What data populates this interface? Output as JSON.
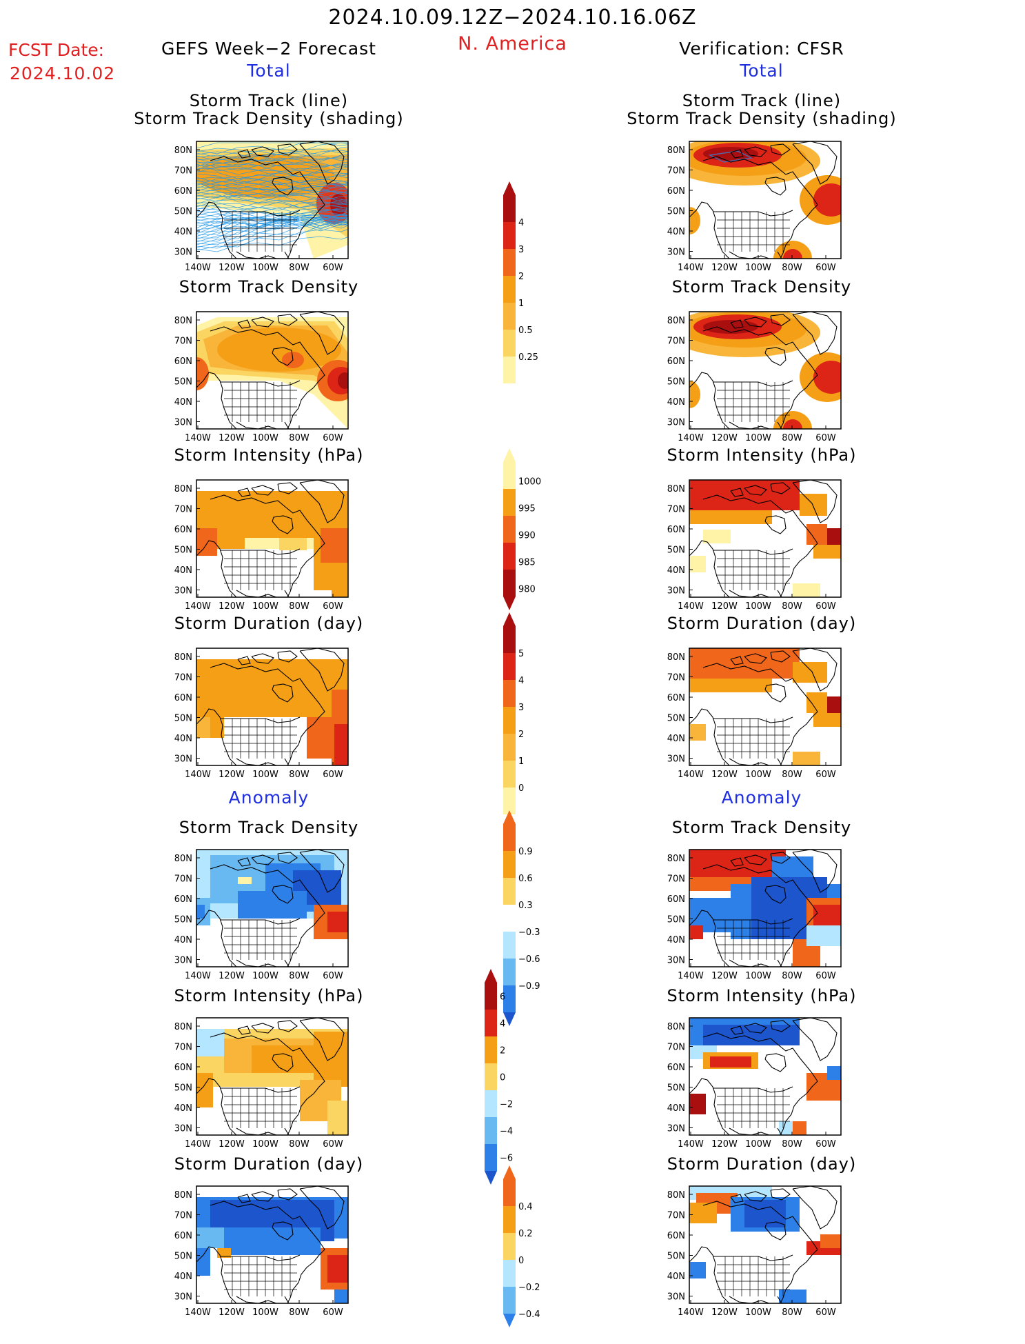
{
  "header": {
    "date_range": "2024.10.09.12Z−2024.10.16.06Z",
    "region": "N. America",
    "fcst_label": "FCST Date:",
    "fcst_date": "2024.10.02",
    "left_title": "GEFS Week−2 Forecast",
    "right_title": "Verification: CFSR",
    "total_label": "Total",
    "anomaly_label": "Anomaly"
  },
  "panels": {
    "storm_track": [
      "Storm Track (line)",
      "Storm Track Density (shading)"
    ],
    "track_density": "Storm Track Density",
    "intensity": "Storm Intensity (hPa)",
    "duration": "Storm Duration (day)"
  },
  "axes": {
    "lat_labels": [
      "80N",
      "70N",
      "60N",
      "50N",
      "40N",
      "30N"
    ],
    "lon_labels": [
      "140W",
      "120W",
      "100W",
      "80W",
      "60W"
    ]
  },
  "colorbars": {
    "total_density": [
      "4",
      "3",
      "2",
      "1",
      "0.5",
      "0.25"
    ],
    "total_intensity": [
      "1000",
      "995",
      "990",
      "985",
      "980"
    ],
    "total_duration": [
      "5",
      "4",
      "3",
      "2",
      "1",
      "0"
    ],
    "anom_density": [
      "0.9",
      "0.6",
      "0.3",
      "−0.3",
      "−0.6",
      "−0.9"
    ],
    "anom_intensity": [
      "6",
      "4",
      "2",
      "0",
      "−2",
      "−4",
      "−6"
    ],
    "anom_duration": [
      "0.4",
      "0.2",
      "0",
      "−0.2",
      "−0.4"
    ]
  },
  "colors": {
    "title_red": "#e02020",
    "title_blue": "#1e2ee0",
    "light_yellow": "#fff3a8",
    "yellow": "#fbd562",
    "orange_light": "#f8b53a",
    "orange": "#f59f16",
    "orange_red": "#f0661b",
    "red": "#dc2417",
    "dark_red": "#a90f0f",
    "blue_light": "#b4e6ff",
    "blue_mid": "#68b8f2",
    "blue": "#2d80e8",
    "blue_dark": "#1c55cc",
    "track_line": "#2196e8"
  }
}
